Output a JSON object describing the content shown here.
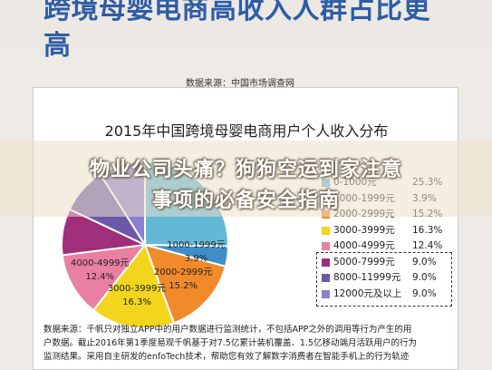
{
  "headline": {
    "line1": "跨境母婴电商高收入人群占比更",
    "line2": "高"
  },
  "source_top": "数据来源：中国市场调查网",
  "banner": {
    "line1": "物业公司头痛？狗狗空运到家注意",
    "line2": "事项的必备安全指南"
  },
  "footnote": {
    "line1": "数据来源：千帆只对独立APP中的用户数据进行监测统计，不包括APP之外的调用等行为产生的用",
    "line2": "户数据。截止2016年第1季度易观千帆基于对7.5亿累计装机覆盖、1.5亿移动端月活跃用户的行为",
    "line3": "监测结果。采用自主研发的enfoTech技术，帮助您有效了解数字消费者在智能手机上的行为轨迹"
  },
  "chart_data": {
    "type": "pie",
    "title": "2015年中国跨境母婴电商用户个人收入分布",
    "categories": [
      "0-1000元",
      "1000-1999元",
      "2000-2999元",
      "3000-3999元",
      "4000-4999元",
      "5000-7999元",
      "8000-11999元",
      "12000元及以上"
    ],
    "values": [
      25.3,
      3.9,
      15.2,
      16.3,
      12.4,
      9.0,
      9.0,
      9.0
    ],
    "colors": [
      "#63b8d6",
      "#3e8fc8",
      "#f08a2a",
      "#f2d51c",
      "#e97fa1",
      "#9f2f7a",
      "#6d58a8",
      "#8c7fd0"
    ],
    "legend_position": "right",
    "visible_slice_labels": [
      {
        "category": "1000-1999元",
        "text": "1000-1999元",
        "value": "3.9%"
      },
      {
        "category": "2000-2999元",
        "text": "2000-2999元",
        "value": "15.2%"
      },
      {
        "category": "3000-3999元",
        "text": "3000-3999元",
        "value": "16.3%"
      },
      {
        "category": "4000-4999元",
        "text": "4000-4999元",
        "value": "12.4%"
      }
    ],
    "legend_values": [
      "25.3%",
      "3.9%",
      "15.2%",
      "16.3%",
      "12.4%",
      "9.0%",
      "9.0%",
      "9.0%"
    ]
  }
}
